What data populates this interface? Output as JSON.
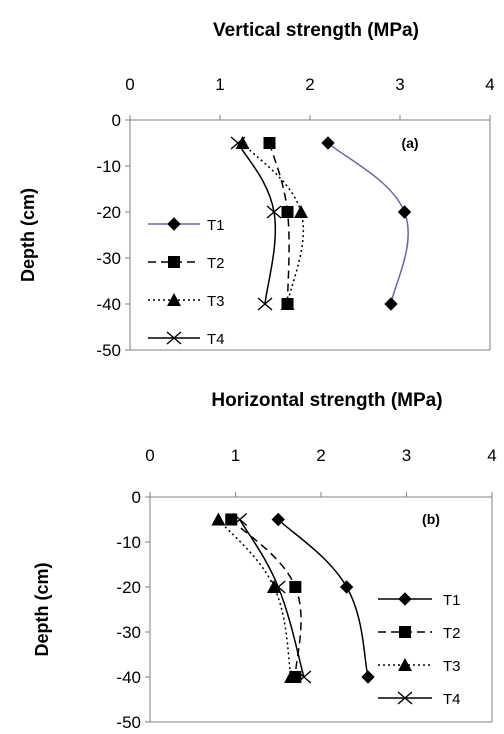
{
  "chart_data": [
    {
      "type": "line",
      "panel": "(a)",
      "title": "Vertical strength (MPa)",
      "xlabel": "Vertical strength (MPa)",
      "ylabel": "Depth (cm)",
      "xlim": [
        0,
        4
      ],
      "ylim": [
        -50,
        0
      ],
      "x_ticks": [
        0,
        1,
        2,
        3,
        4
      ],
      "y_ticks": [
        0,
        -10,
        -20,
        -30,
        -40,
        -50
      ],
      "x_axis_position": "top",
      "legend_position": "left",
      "series": [
        {
          "name": "T1",
          "marker": "diamond",
          "dash": "solid",
          "color": "#6666aa",
          "x": [
            2.2,
            3.05,
            2.9
          ],
          "y": [
            -5,
            -20,
            -40
          ]
        },
        {
          "name": "T2",
          "marker": "square",
          "dash": "dashed",
          "color": "#000000",
          "x": [
            1.55,
            1.75,
            1.75
          ],
          "y": [
            -5,
            -20,
            -40
          ]
        },
        {
          "name": "T3",
          "marker": "triangle",
          "dash": "dotted",
          "color": "#000000",
          "x": [
            1.25,
            1.9,
            1.75
          ],
          "y": [
            -5,
            -20,
            -40
          ]
        },
        {
          "name": "T4",
          "marker": "x",
          "dash": "solid",
          "color": "#000000",
          "x": [
            1.2,
            1.6,
            1.5
          ],
          "y": [
            -5,
            -20,
            -40
          ]
        }
      ]
    },
    {
      "type": "line",
      "panel": "(b)",
      "title": "Horizontal strength (MPa)",
      "xlabel": "Horizontal strength (MPa)",
      "ylabel": "Depth (cm)",
      "xlim": [
        0,
        4
      ],
      "ylim": [
        -50,
        0
      ],
      "x_ticks": [
        0,
        1,
        2,
        3,
        4
      ],
      "y_ticks": [
        0,
        -10,
        -20,
        -30,
        -40,
        -50
      ],
      "x_axis_position": "top",
      "legend_position": "right",
      "series": [
        {
          "name": "T1",
          "marker": "diamond",
          "dash": "solid",
          "color": "#000000",
          "x": [
            1.5,
            2.3,
            2.55
          ],
          "y": [
            -5,
            -20,
            -40
          ]
        },
        {
          "name": "T2",
          "marker": "square",
          "dash": "dashed",
          "color": "#000000",
          "x": [
            0.95,
            1.7,
            1.7
          ],
          "y": [
            -5,
            -20,
            -40
          ]
        },
        {
          "name": "T3",
          "marker": "triangle",
          "dash": "dotted",
          "color": "#000000",
          "x": [
            0.8,
            1.45,
            1.65
          ],
          "y": [
            -5,
            -20,
            -40
          ]
        },
        {
          "name": "T4",
          "marker": "x",
          "dash": "solid",
          "color": "#000000",
          "x": [
            1.05,
            1.5,
            1.8
          ],
          "y": [
            -5,
            -20,
            -40
          ]
        }
      ]
    }
  ]
}
